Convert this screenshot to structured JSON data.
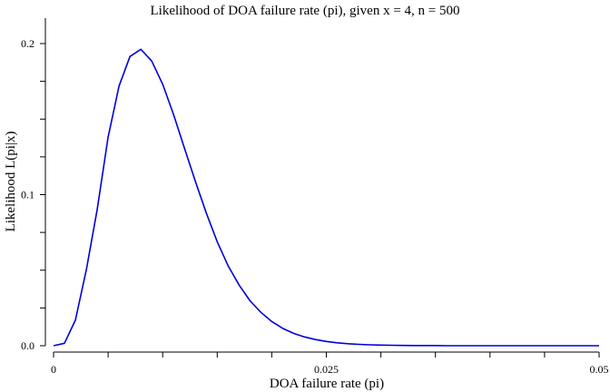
{
  "chart_data": {
    "type": "line",
    "title": "Likelihood of DOA failure rate (pi), given x = 4, n = 500",
    "xlabel": "DOA failure rate (pi)",
    "ylabel": "Likelihood L(pi|x)",
    "xlim": [
      0,
      0.05
    ],
    "ylim": [
      0,
      0.21
    ],
    "x_ticks": [
      0,
      0.005,
      0.01,
      0.015,
      0.02,
      0.025,
      0.03,
      0.035,
      0.04,
      0.045,
      0.05
    ],
    "x_tick_labels": [
      {
        "value": 0,
        "label": "0"
      },
      {
        "value": 0.025,
        "label": "0.025"
      },
      {
        "value": 0.05,
        "label": "0.05"
      }
    ],
    "y_ticks": [
      0,
      0.025,
      0.05,
      0.075,
      0.1,
      0.125,
      0.15,
      0.175,
      0.2
    ],
    "y_tick_labels": [
      {
        "value": 0,
        "label": "0.0"
      },
      {
        "value": 0.1,
        "label": "0.1"
      },
      {
        "value": 0.2,
        "label": "0.2"
      }
    ],
    "grid": false,
    "series": [
      {
        "color": "#0000dd",
        "x": [
          0,
          0.001,
          0.002,
          0.003,
          0.004,
          0.005,
          0.006,
          0.007,
          0.008,
          0.009,
          0.01,
          0.011,
          0.012,
          0.013,
          0.014,
          0.015,
          0.016,
          0.017,
          0.018,
          0.019,
          0.02,
          0.021,
          0.022,
          0.023,
          0.024,
          0.025,
          0.026,
          0.027,
          0.028,
          0.029,
          0.03,
          0.031,
          0.032,
          0.033,
          0.034,
          0.035,
          0.036,
          0.037,
          0.038,
          0.039,
          0.04,
          0.041,
          0.042,
          0.043,
          0.044,
          0.045,
          0.046,
          0.047,
          0.048,
          0.049,
          0.05
        ],
        "y": [
          0,
          0.0016,
          0.0169,
          0.0501,
          0.0902,
          0.1381,
          0.1718,
          0.1914,
          0.1962,
          0.1884,
          0.1731,
          0.153,
          0.1307,
          0.1087,
          0.0878,
          0.0688,
          0.0529,
          0.0402,
          0.0298,
          0.0221,
          0.016,
          0.0115,
          0.0082,
          0.0058,
          0.0041,
          0.0028,
          0.0019,
          0.0013,
          0.0009,
          0.0006,
          0.0004,
          0.0003,
          0.0002,
          0.0001,
          0.0001,
          0.0001,
          0,
          0,
          0,
          0,
          0,
          0,
          0,
          0,
          0,
          0,
          0,
          0,
          0,
          0,
          0
        ]
      }
    ]
  }
}
